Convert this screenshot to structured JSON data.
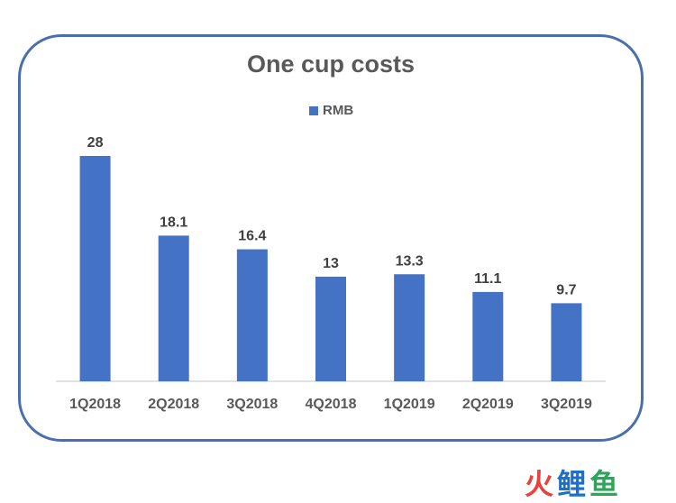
{
  "chart_data": {
    "type": "bar",
    "title": "One cup costs",
    "categories": [
      "1Q2018",
      "2Q2018",
      "3Q2018",
      "4Q2018",
      "1Q2019",
      "2Q2019",
      "3Q2019"
    ],
    "series": [
      {
        "name": "RMB",
        "values": [
          28,
          18.1,
          16.4,
          13,
          13.3,
          11.1,
          9.7
        ],
        "labels": [
          "28",
          "18.1",
          "16.4",
          "13",
          "13.3",
          "11.1",
          "9.7"
        ]
      }
    ],
    "ylim": [
      0,
      28
    ],
    "grid": false,
    "legend": "top-center",
    "bar_color": "#4472c4"
  },
  "watermark": {
    "chars": [
      "火",
      "鲤",
      "鱼"
    ]
  },
  "colors": {
    "frame": "#4a6fae",
    "text": "#595959",
    "bar": "#4472c4"
  }
}
